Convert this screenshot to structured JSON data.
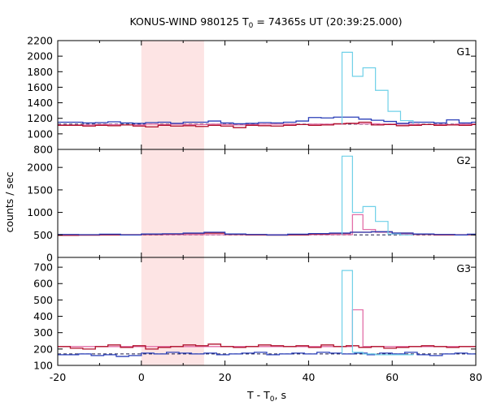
{
  "title": {
    "prefix": "KONUS-WIND 980125 T",
    "sub": "0",
    "suffix": " = 74365s UT (20:39:25.000)"
  },
  "xlabel": {
    "prefix": "T - T",
    "sub": "0",
    "suffix": ", s"
  },
  "ylabel": "counts / sec",
  "colors": {
    "axes": "#000000",
    "shade": "#fde4e4",
    "cyan": "#6fd0e8",
    "blue": "#2a3fb8",
    "red": "#b0102c",
    "pink": "#e36fa8",
    "bg_line": "#1a1a4a"
  },
  "chart_data": [
    {
      "type": "line",
      "panel": "G1",
      "xlim": [
        -20,
        80
      ],
      "ylim": [
        800,
        2200
      ],
      "xticks": [
        -20,
        0,
        20,
        40,
        60,
        80
      ],
      "yticks": [
        800,
        1000,
        1200,
        1400,
        1600,
        1800,
        2000,
        2200
      ],
      "shade": [
        0,
        15
      ],
      "background_level": 1125,
      "series": [
        {
          "color": "cyan",
          "x": [
            48,
            50.5,
            53,
            56,
            59,
            62
          ],
          "y": [
            2050,
            1740,
            1850,
            1560,
            1290,
            1170
          ]
        },
        {
          "color": "blue",
          "x": [
            -20,
            -14,
            -11,
            -8,
            -5,
            -2,
            1,
            4,
            7,
            10,
            13,
            16,
            19,
            22,
            25,
            28,
            31,
            34,
            37,
            40,
            43,
            46,
            49,
            52,
            55,
            58,
            61,
            64,
            67,
            70,
            73,
            76,
            79,
            80
          ],
          "y": [
            1150,
            1140,
            1145,
            1155,
            1140,
            1135,
            1145,
            1150,
            1135,
            1150,
            1150,
            1165,
            1140,
            1130,
            1135,
            1145,
            1140,
            1150,
            1165,
            1210,
            1205,
            1215,
            1215,
            1190,
            1175,
            1160,
            1135,
            1150,
            1150,
            1140,
            1180,
            1140,
            1150,
            1150
          ]
        },
        {
          "color": "red",
          "x": [
            -20,
            -14,
            -11,
            -8,
            -5,
            -2,
            1,
            4,
            7,
            10,
            13,
            16,
            19,
            22,
            25,
            28,
            31,
            34,
            37,
            40,
            43,
            46,
            49,
            52,
            55,
            58,
            61,
            64,
            67,
            70,
            73,
            76,
            79,
            80
          ],
          "y": [
            1110,
            1100,
            1110,
            1105,
            1115,
            1100,
            1090,
            1110,
            1100,
            1105,
            1095,
            1110,
            1100,
            1080,
            1110,
            1105,
            1100,
            1110,
            1120,
            1110,
            1115,
            1130,
            1135,
            1150,
            1115,
            1120,
            1105,
            1110,
            1120,
            1110,
            1115,
            1110,
            1120,
            1120
          ]
        },
        {
          "color": "pink",
          "x": [
            -20,
            -17,
            -14,
            -11,
            -8,
            -5,
            -2,
            1,
            4,
            7,
            10,
            13,
            16,
            19,
            22,
            25,
            28,
            31,
            34,
            37,
            40,
            43,
            46,
            48.5,
            51,
            54,
            57,
            60,
            63,
            66,
            69,
            72,
            75,
            78,
            80
          ],
          "y": [
            1115,
            1115,
            1115,
            1120,
            1120,
            1115,
            1115,
            1125,
            1120,
            1125,
            1120,
            1120,
            1125,
            1120,
            1115,
            1120,
            1125,
            1125,
            1125,
            1120,
            1125,
            1125,
            1125,
            1135,
            1130,
            1130,
            1125,
            1125,
            1125,
            1120,
            1120,
            1120,
            1125,
            1125,
            1125
          ]
        }
      ]
    },
    {
      "type": "line",
      "panel": "G2",
      "xlim": [
        -20,
        80
      ],
      "ylim": [
        0,
        2400
      ],
      "xticks": [
        -20,
        0,
        20,
        40,
        60,
        80
      ],
      "yticks": [
        0,
        500,
        1000,
        1500,
        2000
      ],
      "shade": [
        0,
        15
      ],
      "background_level": 500,
      "series": [
        {
          "color": "cyan",
          "x": [
            48,
            50.5,
            53,
            56,
            59,
            62
          ],
          "y": [
            2250,
            1000,
            1130,
            800,
            520,
            500
          ]
        },
        {
          "color": "blue",
          "x": [
            -20,
            -15,
            -10,
            -5,
            0,
            5,
            10,
            15,
            20,
            25,
            30,
            35,
            40,
            45,
            50,
            55,
            60,
            65,
            70,
            75,
            78,
            80
          ],
          "y": [
            510,
            505,
            515,
            500,
            520,
            525,
            540,
            560,
            520,
            510,
            500,
            515,
            530,
            540,
            560,
            570,
            540,
            520,
            510,
            500,
            515,
            515
          ]
        },
        {
          "color": "red",
          "x": [
            -20,
            -15,
            -10,
            -5,
            0,
            5,
            10,
            15,
            20,
            25,
            30,
            35,
            40,
            45,
            50,
            55,
            60,
            65,
            70,
            75,
            78,
            80
          ],
          "y": [
            490,
            495,
            500,
            505,
            510,
            520,
            530,
            540,
            510,
            500,
            495,
            500,
            520,
            530,
            560,
            570,
            540,
            510,
            500,
            500,
            505,
            505
          ]
        },
        {
          "color": "pink",
          "x": [
            -20,
            -10,
            0,
            10,
            20,
            30,
            40,
            48,
            50.5,
            53,
            56,
            60,
            70,
            80
          ],
          "y": [
            500,
            500,
            505,
            505,
            505,
            505,
            505,
            505,
            950,
            620,
            560,
            520,
            505,
            505
          ]
        }
      ]
    },
    {
      "type": "line",
      "panel": "G3",
      "xlim": [
        -20,
        80
      ],
      "ylim": [
        100,
        760
      ],
      "xticks": [
        -20,
        0,
        20,
        40,
        60,
        80
      ],
      "yticks": [
        100,
        200,
        300,
        400,
        500,
        600,
        700
      ],
      "shade": [
        0,
        15
      ],
      "background_level": 170,
      "series": [
        {
          "color": "cyan",
          "x": [
            48,
            50.5,
            53,
            56,
            59,
            62
          ],
          "y": [
            680,
            180,
            170,
            165,
            165,
            165
          ]
        },
        {
          "color": "blue",
          "x": [
            -20,
            -15,
            -12,
            -9,
            -6,
            -3,
            0,
            3,
            6,
            9,
            12,
            15,
            18,
            21,
            24,
            27,
            30,
            33,
            36,
            39,
            42,
            45,
            48,
            51,
            54,
            57,
            60,
            63,
            66,
            69,
            72,
            75,
            78,
            80
          ],
          "y": [
            165,
            170,
            160,
            165,
            155,
            160,
            175,
            170,
            180,
            175,
            170,
            175,
            165,
            170,
            175,
            180,
            165,
            170,
            175,
            170,
            180,
            175,
            170,
            175,
            165,
            175,
            170,
            180,
            165,
            160,
            170,
            175,
            170,
            170
          ]
        },
        {
          "color": "red",
          "x": [
            -20,
            -17,
            -14,
            -11,
            -8,
            -5,
            -2,
            1,
            4,
            7,
            10,
            13,
            16,
            19,
            22,
            25,
            28,
            31,
            34,
            37,
            40,
            43,
            46,
            49,
            52,
            55,
            58,
            61,
            64,
            67,
            70,
            73,
            76,
            79,
            80
          ],
          "y": [
            215,
            205,
            200,
            215,
            225,
            210,
            220,
            200,
            210,
            215,
            225,
            220,
            230,
            215,
            210,
            215,
            225,
            220,
            215,
            220,
            210,
            225,
            215,
            220,
            210,
            215,
            205,
            210,
            215,
            220,
            215,
            210,
            215,
            215,
            215
          ]
        },
        {
          "color": "pink",
          "x": [
            -20,
            -10,
            0,
            10,
            20,
            30,
            40,
            48,
            50.5,
            53,
            60,
            70,
            80
          ],
          "y": [
            215,
            215,
            215,
            215,
            215,
            215,
            215,
            215,
            440,
            215,
            215,
            215,
            215
          ]
        }
      ]
    }
  ],
  "panel_labels": [
    "G1",
    "G2",
    "G3"
  ]
}
